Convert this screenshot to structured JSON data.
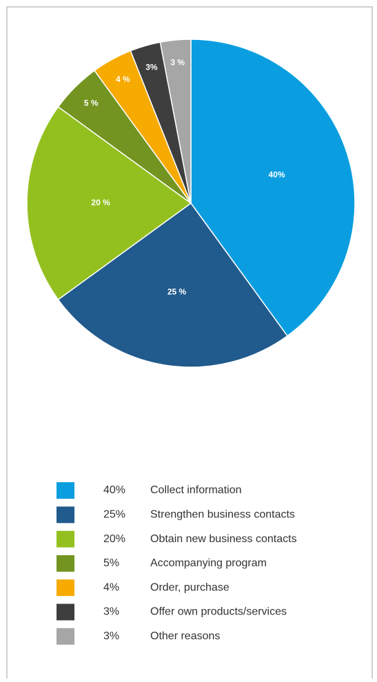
{
  "chart_data": {
    "type": "pie",
    "categories": [
      "Collect information",
      "Strengthen business contacts",
      "Obtain new business contacts",
      "Accompanying program",
      "Order, purchase",
      "Offer own products/services",
      "Other reasons"
    ],
    "values": [
      40,
      25,
      20,
      5,
      4,
      3,
      3
    ],
    "value_labels": [
      "40%",
      "25%",
      "20%",
      "5%",
      "4%",
      "3%",
      "3%"
    ],
    "slice_labels": [
      "40%",
      "25 %",
      "20 %",
      "5 %",
      "4 %",
      "3%",
      "3 %"
    ],
    "colors": [
      "#0a9ee0",
      "#215a8c",
      "#93c01f",
      "#739420",
      "#f7aa00",
      "#3e3e3e",
      "#a6a6a6"
    ]
  }
}
